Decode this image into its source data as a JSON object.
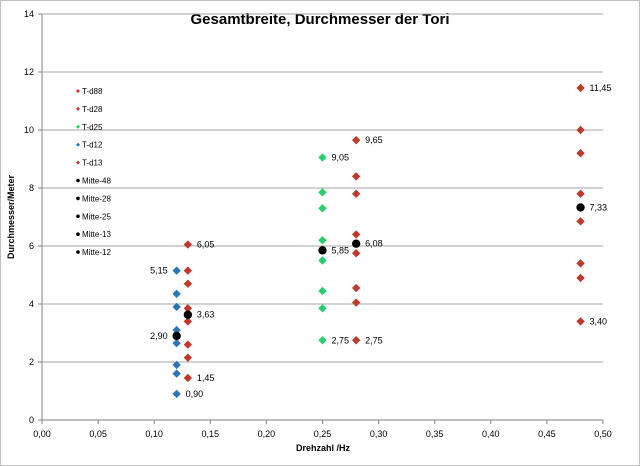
{
  "chart_data": {
    "type": "scatter",
    "title": "Gesamtbreite, Durchmesser der Tori",
    "xlabel": "Drehzahl /Hz",
    "ylabel": "Durchmesser/Meter",
    "xlim": [
      0,
      0.5
    ],
    "ylim": [
      0,
      14
    ],
    "x_ticks": [
      "0,00",
      "0,05",
      "0,10",
      "0,15",
      "0,20",
      "0,25",
      "0,30",
      "0,35",
      "0,40",
      "0,45",
      "0,50"
    ],
    "y_ticks": [
      "0",
      "2",
      "4",
      "6",
      "8",
      "10",
      "12",
      "14"
    ],
    "grid": "horizontal",
    "legend_placement": "top-left",
    "series": [
      {
        "name": "T-d88",
        "color": "#c0392b",
        "marker": "diamond",
        "points": [
          [
            0.48,
            11.45
          ]
        ]
      },
      {
        "name": "T-d28",
        "color": "#c0392b",
        "marker": "diamond",
        "points": [
          [
            0.48,
            10.0
          ],
          [
            0.48,
            9.2
          ],
          [
            0.48,
            7.8
          ],
          [
            0.48,
            6.85
          ],
          [
            0.48,
            5.4
          ],
          [
            0.48,
            4.9
          ],
          [
            0.48,
            3.4
          ]
        ]
      },
      {
        "name": "T-d25",
        "color": "#2ecc71",
        "marker": "diamond",
        "points": [
          [
            0.25,
            9.05
          ],
          [
            0.25,
            7.85
          ],
          [
            0.25,
            7.3
          ],
          [
            0.25,
            6.2
          ],
          [
            0.25,
            5.5
          ],
          [
            0.25,
            4.45
          ],
          [
            0.25,
            3.85
          ],
          [
            0.25,
            2.75
          ]
        ]
      },
      {
        "name": "T-d12",
        "color": "#2e75b6",
        "marker": "diamond",
        "points": [
          [
            0.12,
            5.15
          ],
          [
            0.12,
            4.35
          ],
          [
            0.12,
            3.9
          ],
          [
            0.12,
            3.1
          ],
          [
            0.12,
            2.65
          ],
          [
            0.12,
            1.9
          ],
          [
            0.12,
            1.6
          ],
          [
            0.12,
            0.9
          ]
        ]
      },
      {
        "name": "T-d13",
        "color": "#c0392b",
        "marker": "diamond",
        "points": [
          [
            0.13,
            6.05
          ],
          [
            0.13,
            5.15
          ],
          [
            0.13,
            4.7
          ],
          [
            0.13,
            3.85
          ],
          [
            0.13,
            3.4
          ],
          [
            0.13,
            2.6
          ],
          [
            0.13,
            2.15
          ],
          [
            0.13,
            1.45
          ],
          [
            0.28,
            9.65
          ],
          [
            0.28,
            8.4
          ],
          [
            0.28,
            7.8
          ],
          [
            0.28,
            6.4
          ],
          [
            0.28,
            5.75
          ],
          [
            0.28,
            4.55
          ],
          [
            0.28,
            4.05
          ],
          [
            0.28,
            2.75
          ]
        ]
      },
      {
        "name": "Mitte-48",
        "color": "#000000",
        "marker": "circle",
        "points": [
          [
            0.48,
            7.33
          ]
        ]
      },
      {
        "name": "Mitte-28",
        "color": "#000000",
        "marker": "circle",
        "points": [
          [
            0.28,
            6.08
          ]
        ]
      },
      {
        "name": "Mitte-25",
        "color": "#000000",
        "marker": "circle",
        "points": [
          [
            0.25,
            5.85
          ]
        ]
      },
      {
        "name": "Mitte-13",
        "color": "#000000",
        "marker": "circle",
        "points": [
          [
            0.13,
            3.63
          ]
        ]
      },
      {
        "name": "Mitte-12",
        "color": "#000000",
        "marker": "circle",
        "points": [
          [
            0.12,
            2.9
          ]
        ]
      }
    ],
    "annotations": [
      {
        "text": "11,45",
        "x": 0.48,
        "y": 11.45,
        "side": "right"
      },
      {
        "text": "9,65",
        "x": 0.28,
        "y": 9.65,
        "side": "right"
      },
      {
        "text": "9,05",
        "x": 0.25,
        "y": 9.05,
        "side": "right"
      },
      {
        "text": "7,33",
        "x": 0.48,
        "y": 7.33,
        "side": "right"
      },
      {
        "text": "6,08",
        "x": 0.28,
        "y": 6.08,
        "side": "right"
      },
      {
        "text": "6,05",
        "x": 0.13,
        "y": 6.05,
        "side": "right"
      },
      {
        "text": "5,85",
        "x": 0.25,
        "y": 5.85,
        "side": "right"
      },
      {
        "text": "5,15",
        "x": 0.12,
        "y": 5.15,
        "side": "left"
      },
      {
        "text": "3,63",
        "x": 0.13,
        "y": 3.63,
        "side": "right"
      },
      {
        "text": "3,40",
        "x": 0.48,
        "y": 3.4,
        "side": "right"
      },
      {
        "text": "2,90",
        "x": 0.12,
        "y": 2.9,
        "side": "left"
      },
      {
        "text": "2,75",
        "x": 0.25,
        "y": 2.75,
        "side": "right"
      },
      {
        "text": "2,75",
        "x": 0.28,
        "y": 2.75,
        "side": "right"
      },
      {
        "text": "1,45",
        "x": 0.13,
        "y": 1.45,
        "side": "right"
      },
      {
        "text": "0,90",
        "x": 0.12,
        "y": 0.9,
        "side": "right"
      }
    ]
  }
}
